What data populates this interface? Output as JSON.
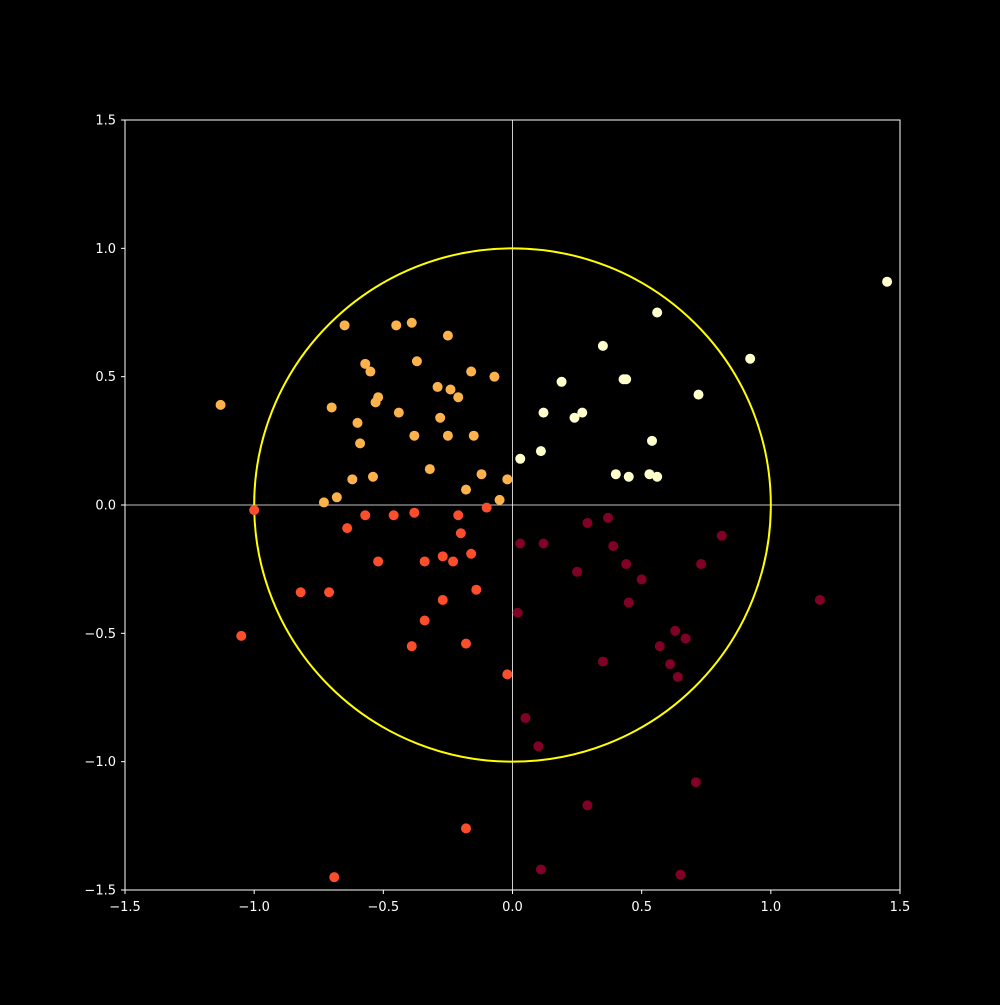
{
  "chart_data": {
    "type": "scatter",
    "title": "",
    "xlabel": "",
    "ylabel": "",
    "xlim": [
      -1.5,
      1.5
    ],
    "ylim": [
      -1.5,
      1.5
    ],
    "x_ticks": [
      -1.5,
      -1.0,
      -0.5,
      0.0,
      0.5,
      1.0,
      1.5
    ],
    "y_ticks": [
      -1.5,
      -1.0,
      -0.5,
      0.0,
      0.5,
      1.0,
      1.5
    ],
    "x_tick_labels": [
      "−1.5",
      "−1.0",
      "−0.5",
      "0.0",
      "0.5",
      "1.0",
      "1.5"
    ],
    "y_tick_labels": [
      "−1.5",
      "−1.0",
      "−0.5",
      "0.0",
      "0.5",
      "1.0",
      "1.5"
    ],
    "grid": false,
    "background_color": "#000000",
    "axis_color": "#ffffff",
    "reference_lines": {
      "x": 0,
      "y": 0,
      "color": "#ffffff"
    },
    "unit_circle": {
      "center": [
        0,
        0
      ],
      "radius": 1.0,
      "color": "#ffff00"
    },
    "series": [
      {
        "color": "#ffffcc",
        "points": [
          [
            1.45,
            0.87
          ],
          [
            0.56,
            0.75
          ],
          [
            0.92,
            0.57
          ],
          [
            0.35,
            0.62
          ],
          [
            0.43,
            0.49
          ],
          [
            0.44,
            0.49
          ],
          [
            0.19,
            0.48
          ],
          [
            0.72,
            0.43
          ],
          [
            0.12,
            0.36
          ],
          [
            0.27,
            0.36
          ],
          [
            0.24,
            0.34
          ],
          [
            0.54,
            0.25
          ],
          [
            0.11,
            0.21
          ],
          [
            0.03,
            0.18
          ],
          [
            0.4,
            0.12
          ],
          [
            0.53,
            0.12
          ],
          [
            0.56,
            0.11
          ],
          [
            0.45,
            0.11
          ]
        ]
      },
      {
        "color": "#feb24c",
        "points": [
          [
            -1.13,
            0.39
          ],
          [
            -0.65,
            0.7
          ],
          [
            -0.45,
            0.7
          ],
          [
            -0.39,
            0.71
          ],
          [
            -0.25,
            0.66
          ],
          [
            -0.57,
            0.55
          ],
          [
            -0.55,
            0.52
          ],
          [
            -0.37,
            0.56
          ],
          [
            -0.16,
            0.52
          ],
          [
            -0.07,
            0.5
          ],
          [
            -0.29,
            0.46
          ],
          [
            -0.24,
            0.45
          ],
          [
            -0.21,
            0.42
          ],
          [
            -0.52,
            0.42
          ],
          [
            -0.53,
            0.4
          ],
          [
            -0.7,
            0.38
          ],
          [
            -0.44,
            0.36
          ],
          [
            -0.28,
            0.34
          ],
          [
            -0.6,
            0.32
          ],
          [
            -0.38,
            0.27
          ],
          [
            -0.25,
            0.27
          ],
          [
            -0.15,
            0.27
          ],
          [
            -0.59,
            0.24
          ],
          [
            -0.32,
            0.14
          ],
          [
            -0.12,
            0.12
          ],
          [
            -0.62,
            0.1
          ],
          [
            -0.54,
            0.11
          ],
          [
            -0.02,
            0.1
          ],
          [
            -0.18,
            0.06
          ],
          [
            -0.68,
            0.03
          ],
          [
            -0.73,
            0.01
          ],
          [
            -0.05,
            0.02
          ]
        ]
      },
      {
        "color": "#fc4e2a",
        "points": [
          [
            -1.0,
            -0.02
          ],
          [
            -0.64,
            -0.09
          ],
          [
            -0.57,
            -0.04
          ],
          [
            -0.46,
            -0.04
          ],
          [
            -0.38,
            -0.03
          ],
          [
            -0.21,
            -0.04
          ],
          [
            -0.1,
            -0.01
          ],
          [
            -0.2,
            -0.11
          ],
          [
            -0.52,
            -0.22
          ],
          [
            -0.34,
            -0.22
          ],
          [
            -0.27,
            -0.2
          ],
          [
            -0.23,
            -0.22
          ],
          [
            -0.16,
            -0.19
          ],
          [
            -0.82,
            -0.34
          ],
          [
            -0.71,
            -0.34
          ],
          [
            -0.27,
            -0.37
          ],
          [
            -0.14,
            -0.33
          ],
          [
            -1.05,
            -0.51
          ],
          [
            -0.34,
            -0.45
          ],
          [
            -0.39,
            -0.55
          ],
          [
            -0.18,
            -0.54
          ],
          [
            -0.02,
            -0.66
          ],
          [
            -0.18,
            -1.26
          ],
          [
            -0.69,
            -1.45
          ]
        ]
      },
      {
        "color": "#800026",
        "points": [
          [
            0.29,
            -0.07
          ],
          [
            0.37,
            -0.05
          ],
          [
            0.81,
            -0.12
          ],
          [
            0.03,
            -0.15
          ],
          [
            0.12,
            -0.15
          ],
          [
            0.39,
            -0.16
          ],
          [
            0.44,
            -0.23
          ],
          [
            0.73,
            -0.23
          ],
          [
            0.25,
            -0.26
          ],
          [
            0.5,
            -0.29
          ],
          [
            1.19,
            -0.37
          ],
          [
            0.45,
            -0.38
          ],
          [
            0.02,
            -0.42
          ],
          [
            0.63,
            -0.49
          ],
          [
            0.67,
            -0.52
          ],
          [
            0.57,
            -0.55
          ],
          [
            0.35,
            -0.61
          ],
          [
            0.61,
            -0.62
          ],
          [
            0.64,
            -0.67
          ],
          [
            0.05,
            -0.83
          ],
          [
            0.1,
            -0.94
          ],
          [
            0.71,
            -1.08
          ],
          [
            0.29,
            -1.17
          ],
          [
            0.11,
            -1.42
          ],
          [
            0.65,
            -1.44
          ]
        ]
      }
    ]
  }
}
